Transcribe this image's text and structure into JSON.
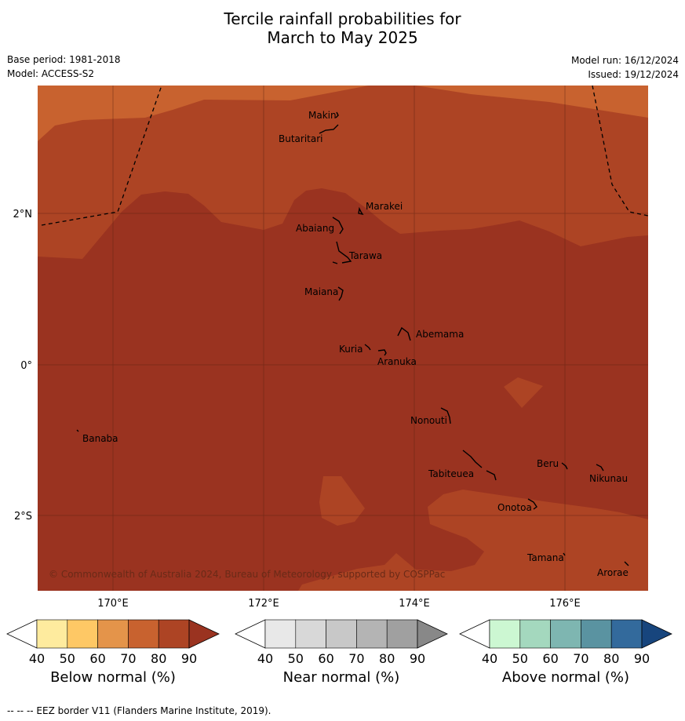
{
  "title_line1": "Tercile rainfall probabilities for",
  "title_line2": "March to May 2025",
  "base_period": "Base period: 1981-2018",
  "model": "Model: ACCESS-S2",
  "model_run": "Model run: 16/12/2024",
  "issued": "Issued: 19/12/2024",
  "map": {
    "lon_labels": [
      "170°E",
      "172°E",
      "174°E",
      "176°E"
    ],
    "lat_labels": [
      "2°N",
      "0°",
      "2°S"
    ],
    "copyright": "© Commonwealth of Australia 2024, Bureau of Meteorology, supported by COSPPac",
    "places": [
      "Makin",
      "Butaritari",
      "Marakei",
      "Abaiang",
      "Tarawa",
      "Maiana",
      "Abemama",
      "Kuria",
      "Aranuka",
      "Nonouti",
      "Banaba",
      "Beru",
      "Nikunau",
      "Tabiteuea",
      "Onotoa",
      "Tamana",
      "Arorae"
    ],
    "colors": {
      "below_60_70": "#c8622f",
      "below_70_80": "#ad4424",
      "below_80_90": "#9a3320"
    }
  },
  "colorbars": [
    {
      "title": "Below normal (%)",
      "ticks": [
        "40",
        "50",
        "60",
        "70",
        "80",
        "90"
      ],
      "colors": [
        "#ffffff",
        "#feeb9e",
        "#fec865",
        "#e4944a",
        "#c8622f",
        "#ad4424",
        "#9a3320"
      ]
    },
    {
      "title": "Near normal (%)",
      "ticks": [
        "40",
        "50",
        "60",
        "70",
        "80",
        "90"
      ],
      "colors": [
        "#ffffff",
        "#e8e8e8",
        "#d8d8d8",
        "#c8c8c8",
        "#b4b4b4",
        "#a0a0a0",
        "#888888"
      ]
    },
    {
      "title": "Above normal (%)",
      "ticks": [
        "40",
        "50",
        "60",
        "70",
        "80",
        "90"
      ],
      "colors": [
        "#ffffff",
        "#ccf7d2",
        "#a4d8be",
        "#7eb6b1",
        "#5a93a1",
        "#336a9c",
        "#17457d"
      ]
    }
  ],
  "footnote": "--  --  -- EEZ border V11 (Flanders Marine Institute, 2019)."
}
